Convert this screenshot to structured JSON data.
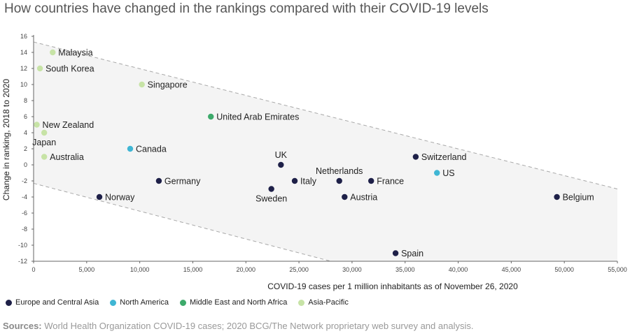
{
  "title": "How countries have changed in the rankings compared with their COVID-19 levels",
  "chart_data": {
    "type": "scatter",
    "xlabel": "COVID-19 cases per 1 million inhabitants as of November 26, 2020",
    "ylabel": "Change in ranking, 2018 to 2020",
    "xlim": [
      0,
      55000
    ],
    "ylim": [
      -12,
      16
    ],
    "xticks": [
      0,
      5000,
      10000,
      15000,
      20000,
      25000,
      30000,
      35000,
      40000,
      45000,
      50000,
      55000
    ],
    "xtick_labels": [
      "0",
      "5,000",
      "10,000",
      "15,000",
      "20,000",
      "25,000",
      "30,000",
      "35,000",
      "40,000",
      "45,000",
      "50,000",
      "55,000"
    ],
    "yticks": [
      -12,
      -10,
      -8,
      -6,
      -4,
      -2,
      0,
      2,
      4,
      6,
      8,
      10,
      12,
      14,
      16
    ],
    "ytick_labels": [
      "-12",
      "-10",
      "-8",
      "-6",
      "-4",
      "-2",
      "0",
      "2",
      "4",
      "6",
      "8",
      "10",
      "12",
      "14",
      "16"
    ],
    "grid": false,
    "band": {
      "upper_line": [
        [
          0,
          15.3
        ],
        [
          55000,
          -3
        ]
      ],
      "lower_line": [
        [
          0,
          -2.3
        ],
        [
          28000,
          -12
        ]
      ]
    },
    "regions": [
      {
        "name": "Europe and Central Asia",
        "color": "#1e2048"
      },
      {
        "name": "North America",
        "color": "#3fb6d4"
      },
      {
        "name": "Middle East and North Africa",
        "color": "#3daa6b"
      },
      {
        "name": "Asia-Pacific",
        "color": "#c7e3a6"
      }
    ],
    "points": [
      {
        "label": "Malaysia",
        "x": 1800,
        "y": 14,
        "region": 3,
        "pos": "right"
      },
      {
        "label": "South Korea",
        "x": 600,
        "y": 12,
        "region": 3,
        "pos": "right"
      },
      {
        "label": "Singapore",
        "x": 10200,
        "y": 10,
        "region": 3,
        "pos": "right"
      },
      {
        "label": "New Zealand",
        "x": 300,
        "y": 5,
        "region": 3,
        "pos": "right"
      },
      {
        "label": "Japan",
        "x": 1000,
        "y": 4,
        "region": 3,
        "pos": "below"
      },
      {
        "label": "Australia",
        "x": 1000,
        "y": 1,
        "region": 3,
        "pos": "right"
      },
      {
        "label": "United Arab Emirates",
        "x": 16700,
        "y": 6,
        "region": 2,
        "pos": "right"
      },
      {
        "label": "Canada",
        "x": 9100,
        "y": 2,
        "region": 1,
        "pos": "right"
      },
      {
        "label": "US",
        "x": 38000,
        "y": -1,
        "region": 1,
        "pos": "right"
      },
      {
        "label": "Germany",
        "x": 11800,
        "y": -2,
        "region": 0,
        "pos": "right"
      },
      {
        "label": "Norway",
        "x": 6200,
        "y": -4,
        "region": 0,
        "pos": "right"
      },
      {
        "label": "UK",
        "x": 23300,
        "y": 0,
        "region": 0,
        "pos": "above"
      },
      {
        "label": "Sweden",
        "x": 22400,
        "y": -3,
        "region": 0,
        "pos": "below"
      },
      {
        "label": "Italy",
        "x": 24600,
        "y": -2,
        "region": 0,
        "pos": "right"
      },
      {
        "label": "Netherlands",
        "x": 28800,
        "y": -2,
        "region": 0,
        "pos": "above"
      },
      {
        "label": "Austria",
        "x": 29300,
        "y": -4,
        "region": 0,
        "pos": "right"
      },
      {
        "label": "France",
        "x": 31800,
        "y": -2,
        "region": 0,
        "pos": "right"
      },
      {
        "label": "Switzerland",
        "x": 36000,
        "y": 1,
        "region": 0,
        "pos": "right"
      },
      {
        "label": "Belgium",
        "x": 49300,
        "y": -4,
        "region": 0,
        "pos": "right"
      },
      {
        "label": "Spain",
        "x": 34100,
        "y": -11,
        "region": 0,
        "pos": "right"
      }
    ]
  },
  "source": {
    "label": "Sources:",
    "text": "World Health Organization COVID-19 cases; 2020 BCG/The Network proprietary web survey and analysis."
  }
}
